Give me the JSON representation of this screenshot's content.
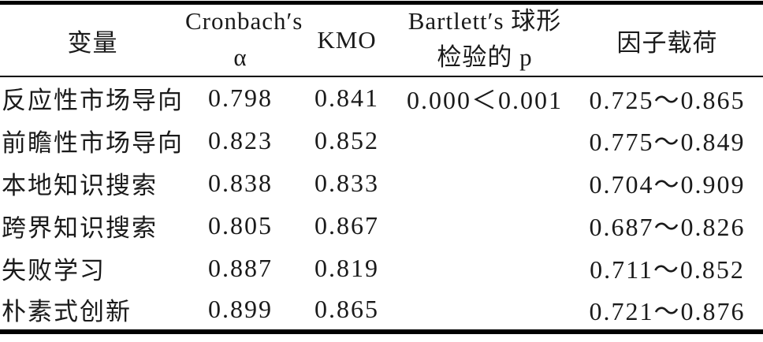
{
  "table": {
    "header": {
      "variable": "变量",
      "cronbach_line1": "Cronbach′s",
      "cronbach_line2": "α",
      "kmo": "KMO",
      "bartlett_line1": "Bartlett′s 球形",
      "bartlett_line2": "检验的 p",
      "loading": "因子载荷"
    },
    "rows": [
      {
        "variable": "反应性市场导向",
        "cronbach": "0.798",
        "kmo": "0.841",
        "bartlett": "0.000＜0.001",
        "loading": "0.725～0.865"
      },
      {
        "variable": "前瞻性市场导向",
        "cronbach": "0.823",
        "kmo": "0.852",
        "bartlett": "",
        "loading": "0.775～0.849"
      },
      {
        "variable": "本地知识搜索",
        "cronbach": "0.838",
        "kmo": "0.833",
        "bartlett": "",
        "loading": "0.704～0.909"
      },
      {
        "variable": "跨界知识搜索",
        "cronbach": "0.805",
        "kmo": "0.867",
        "bartlett": "",
        "loading": "0.687～0.826"
      },
      {
        "variable": "失败学习",
        "cronbach": "0.887",
        "kmo": "0.819",
        "bartlett": "",
        "loading": "0.711～0.852"
      },
      {
        "variable": "朴素式创新",
        "cronbach": "0.899",
        "kmo": "0.865",
        "bartlett": "",
        "loading": "0.721～0.876"
      }
    ]
  },
  "colors": {
    "text": "#1a1a1a",
    "rule": "#000000",
    "background": "#ffffff"
  }
}
